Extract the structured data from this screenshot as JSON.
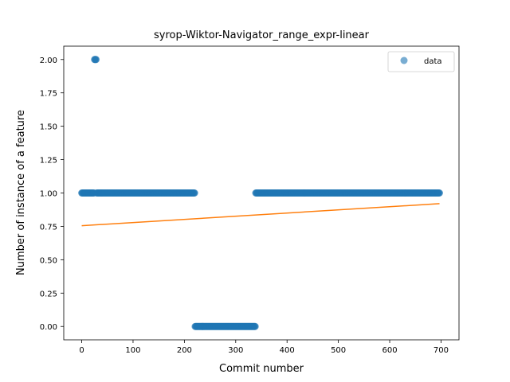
{
  "chart_data": {
    "type": "scatter",
    "title": "syrop-Wiktor-Navigator_range_expr-linear",
    "xlabel": "Commit number",
    "ylabel": "Number of instance of a feature",
    "xlim": [
      -35,
      735
    ],
    "ylim": [
      -0.1,
      2.1
    ],
    "xticks": [
      0,
      100,
      200,
      300,
      400,
      500,
      600,
      700
    ],
    "yticks": [
      0.0,
      0.25,
      0.5,
      0.75,
      1.0,
      1.25,
      1.5,
      1.75,
      2.0
    ],
    "ytick_labels": [
      "0.00",
      "0.25",
      "0.50",
      "0.75",
      "1.00",
      "1.25",
      "1.50",
      "1.75",
      "2.00"
    ],
    "grid": false,
    "legend_position": "top-right",
    "series": [
      {
        "name": "data",
        "kind": "scatter",
        "color": "#1f77b4",
        "alpha": 0.6,
        "segments": [
          {
            "x_start": 0,
            "x_end": 24,
            "y": 1
          },
          {
            "x_start": 25,
            "x_end": 28,
            "y": 2
          },
          {
            "x_start": 29,
            "x_end": 220,
            "y": 1
          },
          {
            "x_start": 221,
            "x_end": 338,
            "y": 0
          },
          {
            "x_start": 339,
            "x_end": 697,
            "y": 1
          }
        ]
      },
      {
        "kind": "line",
        "color": "#ff7f0e",
        "x": [
          0,
          697
        ],
        "y": [
          0.755,
          0.92
        ]
      }
    ]
  }
}
